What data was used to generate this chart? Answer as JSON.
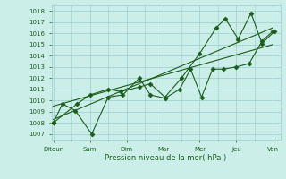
{
  "xlabel": "Pression niveau de la mer( hPa )",
  "background_color": "#cceee8",
  "grid_color": "#99cccc",
  "line_color": "#1a5c1a",
  "x_tick_labels": [
    "Ditoun",
    "Sam",
    "Dim",
    "Mar",
    "Mer",
    "Jeu",
    "Ven"
  ],
  "x_tick_positions": [
    0,
    1,
    2,
    3,
    4,
    5,
    6
  ],
  "ylim": [
    1006.5,
    1018.5
  ],
  "yticks": [
    1007,
    1008,
    1009,
    1010,
    1011,
    1012,
    1013,
    1014,
    1015,
    1016,
    1017,
    1018
  ],
  "series1_x": [
    0,
    0.25,
    0.6,
    1.05,
    1.5,
    1.9,
    2.35,
    2.65,
    3.05,
    3.45,
    3.75,
    4.05,
    4.35,
    4.65,
    5.0,
    5.35,
    5.7,
    6.0
  ],
  "series1_y": [
    1008.0,
    1009.7,
    1009.1,
    1007.0,
    1010.3,
    1010.5,
    1012.0,
    1010.5,
    1010.2,
    1011.0,
    1012.8,
    1010.3,
    1012.8,
    1012.8,
    1013.0,
    1013.3,
    1015.3,
    1016.2
  ],
  "series2_x": [
    0,
    6.0
  ],
  "series2_y": [
    1008.3,
    1016.5
  ],
  "series3_x": [
    0,
    6.0
  ],
  "series3_y": [
    1009.5,
    1015.0
  ],
  "series4_x": [
    0,
    0.65,
    1.0,
    1.5,
    1.85,
    2.35,
    2.65,
    3.05,
    3.5,
    4.0,
    4.45,
    4.7,
    5.05,
    5.4,
    5.7,
    6.05
  ],
  "series4_y": [
    1008.0,
    1009.7,
    1010.5,
    1011.0,
    1010.8,
    1011.2,
    1011.5,
    1010.3,
    1012.0,
    1014.2,
    1016.5,
    1017.3,
    1015.5,
    1017.8,
    1015.1,
    1016.2
  ]
}
